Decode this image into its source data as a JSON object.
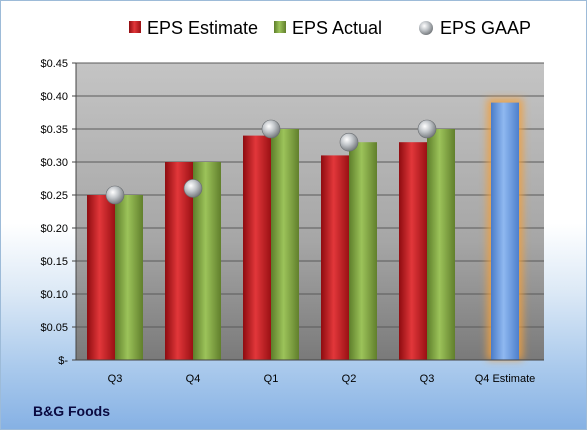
{
  "company": "B&G Foods",
  "chart_data": {
    "type": "bar",
    "categories": [
      "Q3",
      "Q4",
      "Q1",
      "Q2",
      "Q3",
      "Q4 Estimate"
    ],
    "series": [
      {
        "name": "EPS Estimate",
        "values": [
          0.25,
          0.3,
          0.34,
          0.31,
          0.33,
          null
        ],
        "color": "#c0161b"
      },
      {
        "name": "EPS Actual",
        "values": [
          0.25,
          0.3,
          0.35,
          0.33,
          0.35,
          null
        ],
        "color": "#7fa640"
      },
      {
        "name": "EPS GAAP",
        "values": [
          0.25,
          0.26,
          0.35,
          0.33,
          0.35,
          null
        ],
        "color": "#b4b8bc",
        "marker": "sphere"
      }
    ],
    "highlight": {
      "category": "Q4 Estimate",
      "value": 0.39,
      "color": "#6b9be0",
      "glow": "#f0a040"
    },
    "y_ticks": [
      {
        "value": 0,
        "label": "$-"
      },
      {
        "value": 0.05,
        "label": "$0.05"
      },
      {
        "value": 0.1,
        "label": "$0.10"
      },
      {
        "value": 0.15,
        "label": "$0.15"
      },
      {
        "value": 0.2,
        "label": "$0.20"
      },
      {
        "value": 0.25,
        "label": "$0.25"
      },
      {
        "value": 0.3,
        "label": "$0.30"
      },
      {
        "value": 0.35,
        "label": "$0.35"
      },
      {
        "value": 0.4,
        "label": "$0.40"
      },
      {
        "value": 0.45,
        "label": "$0.45"
      }
    ],
    "ylim": [
      0,
      0.45
    ],
    "grid": true,
    "legend": "top"
  }
}
